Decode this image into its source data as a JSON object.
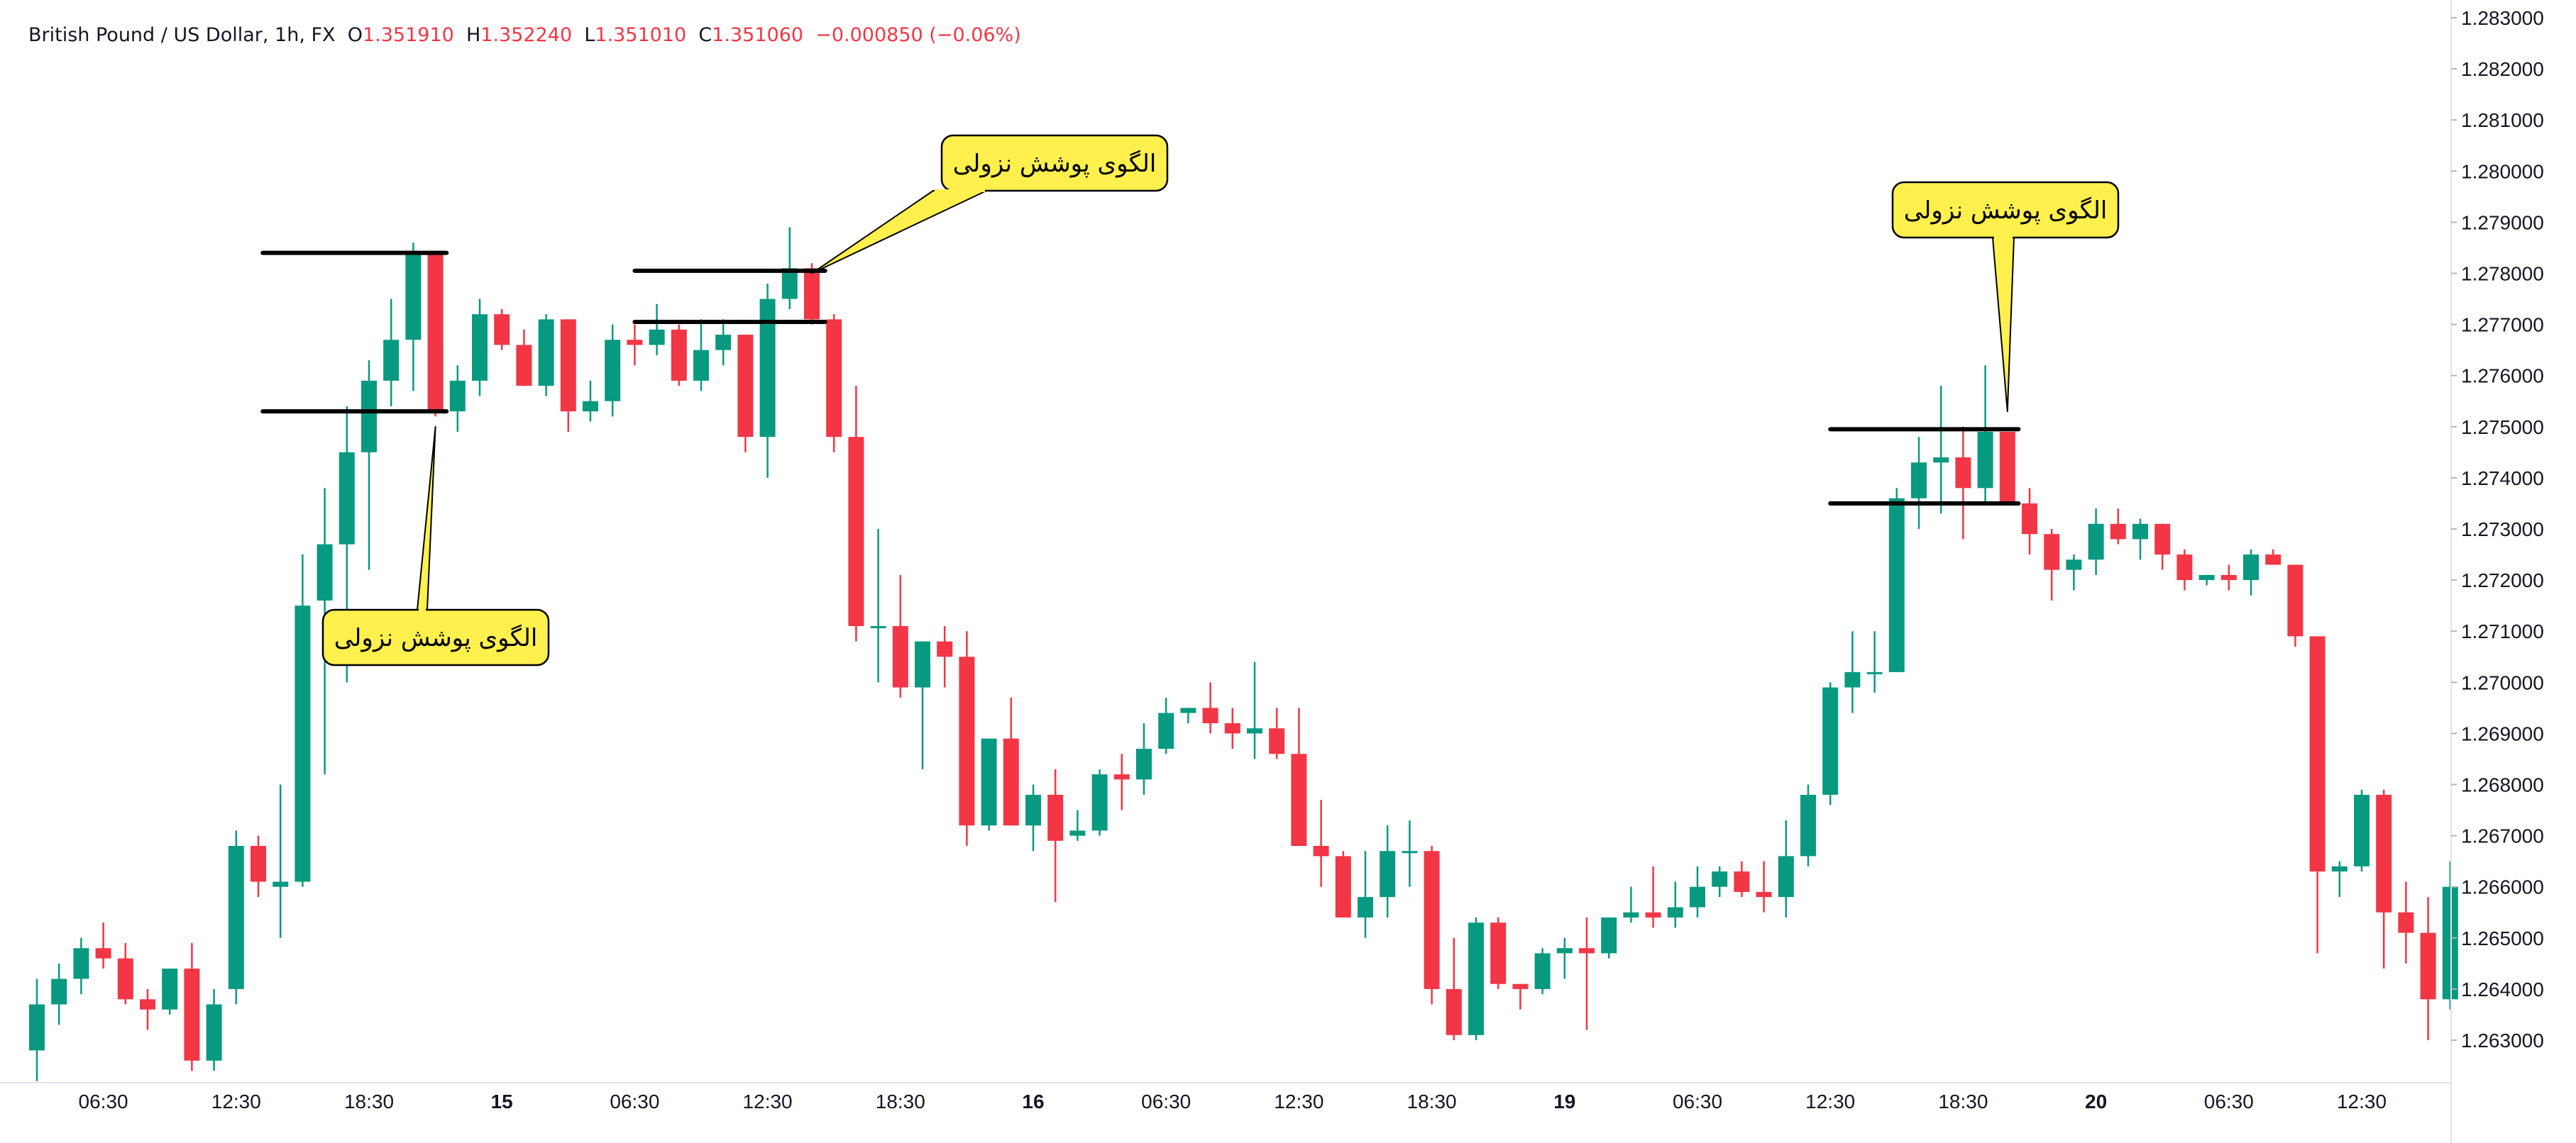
{
  "legend": {
    "symbol": "British Pound / US Dollar, 1h, FX",
    "open_label": "O",
    "open": "1.351910",
    "high_label": "H",
    "high": "1.352240",
    "low_label": "L",
    "low": "1.351010",
    "close_label": "C",
    "close": "1.351060",
    "change": "−0.000850 (−0.06%)"
  },
  "colors": {
    "up": "#089981",
    "down": "#f23645",
    "callout_fill": "#fff04d",
    "line": "#000000"
  },
  "chart_data": {
    "type": "candlestick",
    "ylim": [
      1.2624,
      1.2832
    ],
    "y_ticks": [
      "1.263000",
      "1.264000",
      "1.265000",
      "1.266000",
      "1.267000",
      "1.268000",
      "1.269000",
      "1.270000",
      "1.271000",
      "1.272000",
      "1.273000",
      "1.274000",
      "1.275000",
      "1.276000",
      "1.277000",
      "1.278000",
      "1.279000",
      "1.280000",
      "1.281000",
      "1.282000",
      "1.283000"
    ],
    "x_ticks": [
      {
        "label": "06:30",
        "index": 3,
        "bold": false
      },
      {
        "label": "12:30",
        "index": 9,
        "bold": false
      },
      {
        "label": "18:30",
        "index": 15,
        "bold": false
      },
      {
        "label": "15",
        "index": 21,
        "bold": true
      },
      {
        "label": "06:30",
        "index": 27,
        "bold": false
      },
      {
        "label": "12:30",
        "index": 33,
        "bold": false
      },
      {
        "label": "18:30",
        "index": 39,
        "bold": false
      },
      {
        "label": "16",
        "index": 45,
        "bold": true
      },
      {
        "label": "06:30",
        "index": 51,
        "bold": false
      },
      {
        "label": "12:30",
        "index": 57,
        "bold": false
      },
      {
        "label": "18:30",
        "index": 63,
        "bold": false
      },
      {
        "label": "19",
        "index": 69,
        "bold": true
      },
      {
        "label": "06:30",
        "index": 75,
        "bold": false
      },
      {
        "label": "12:30",
        "index": 81,
        "bold": false
      },
      {
        "label": "18:30",
        "index": 87,
        "bold": false
      },
      {
        "label": "20",
        "index": 93,
        "bold": true
      },
      {
        "label": "06:30",
        "index": 99,
        "bold": false
      },
      {
        "label": "12:30",
        "index": 105,
        "bold": false
      }
    ],
    "candles": [
      [
        1.2628,
        1.2642,
        1.2622,
        1.2637
      ],
      [
        1.2637,
        1.2645,
        1.2633,
        1.2642
      ],
      [
        1.2642,
        1.265,
        1.2639,
        1.2648
      ],
      [
        1.2648,
        1.2653,
        1.2644,
        1.2646
      ],
      [
        1.2646,
        1.2649,
        1.2637,
        1.2638
      ],
      [
        1.2638,
        1.264,
        1.2632,
        1.2636
      ],
      [
        1.2636,
        1.2644,
        1.2635,
        1.2644
      ],
      [
        1.2644,
        1.2649,
        1.2624,
        1.2626
      ],
      [
        1.2626,
        1.264,
        1.2624,
        1.2637
      ],
      [
        1.264,
        1.2671,
        1.2637,
        1.2668
      ],
      [
        1.2668,
        1.267,
        1.2658,
        1.2661
      ],
      [
        1.266,
        1.268,
        1.265,
        1.2661
      ],
      [
        1.2661,
        1.2725,
        1.266,
        1.2715
      ],
      [
        1.2716,
        1.2738,
        1.2682,
        1.2727
      ],
      [
        1.2727,
        1.2754,
        1.27,
        1.2745
      ],
      [
        1.2745,
        1.2763,
        1.2722,
        1.2759
      ],
      [
        1.2759,
        1.2775,
        1.2754,
        1.2767
      ],
      [
        1.2767,
        1.2786,
        1.2757,
        1.2784
      ],
      [
        1.2784,
        1.2784,
        1.2752,
        1.2753
      ],
      [
        1.2753,
        1.2762,
        1.2749,
        1.2759
      ],
      [
        1.2759,
        1.2775,
        1.2756,
        1.2772
      ],
      [
        1.2772,
        1.2773,
        1.2765,
        1.2766
      ],
      [
        1.2766,
        1.2769,
        1.2758,
        1.2758
      ],
      [
        1.2758,
        1.2772,
        1.2756,
        1.2771
      ],
      [
        1.2771,
        1.2771,
        1.2749,
        1.2753
      ],
      [
        1.2753,
        1.2759,
        1.2751,
        1.2755
      ],
      [
        1.2755,
        1.277,
        1.2752,
        1.2767
      ],
      [
        1.2767,
        1.277,
        1.2762,
        1.2766
      ],
      [
        1.2766,
        1.2774,
        1.2764,
        1.2769
      ],
      [
        1.2769,
        1.277,
        1.2758,
        1.2759
      ],
      [
        1.2759,
        1.2771,
        1.2757,
        1.2765
      ],
      [
        1.2765,
        1.2771,
        1.2762,
        1.2768
      ],
      [
        1.2768,
        1.2768,
        1.2745,
        1.2748
      ],
      [
        1.2748,
        1.2778,
        1.274,
        1.2775
      ],
      [
        1.2775,
        1.2789,
        1.2773,
        1.2781
      ],
      [
        1.2781,
        1.2782,
        1.277,
        1.2771
      ],
      [
        1.2771,
        1.2772,
        1.2745,
        1.2748
      ],
      [
        1.2748,
        1.2758,
        1.2708,
        1.2711
      ],
      [
        1.2711,
        1.273,
        1.27,
        1.2711
      ],
      [
        1.2711,
        1.2721,
        1.2697,
        1.2699
      ],
      [
        1.2699,
        1.2708,
        1.2683,
        1.2708
      ],
      [
        1.2708,
        1.2711,
        1.2699,
        1.2705
      ],
      [
        1.2705,
        1.271,
        1.2668,
        1.2672
      ],
      [
        1.2672,
        1.2689,
        1.2671,
        1.2689
      ],
      [
        1.2689,
        1.2697,
        1.2672,
        1.2672
      ],
      [
        1.2672,
        1.268,
        1.2667,
        1.2678
      ],
      [
        1.2678,
        1.2683,
        1.2657,
        1.2669
      ],
      [
        1.267,
        1.2675,
        1.2669,
        1.2671
      ],
      [
        1.2671,
        1.2683,
        1.267,
        1.2682
      ],
      [
        1.2682,
        1.2686,
        1.2675,
        1.2681
      ],
      [
        1.2681,
        1.2692,
        1.2678,
        1.2687
      ],
      [
        1.2687,
        1.2697,
        1.2686,
        1.2694
      ],
      [
        1.2694,
        1.2695,
        1.2692,
        1.2695
      ],
      [
        1.2695,
        1.27,
        1.269,
        1.2692
      ],
      [
        1.2692,
        1.2695,
        1.2687,
        1.269
      ],
      [
        1.269,
        1.2704,
        1.2685,
        1.2691
      ],
      [
        1.2691,
        1.2695,
        1.2685,
        1.2686
      ],
      [
        1.2686,
        1.2695,
        1.2668,
        1.2668
      ],
      [
        1.2668,
        1.2677,
        1.266,
        1.2666
      ],
      [
        1.2666,
        1.2667,
        1.2654,
        1.2654
      ],
      [
        1.2654,
        1.2667,
        1.265,
        1.2658
      ],
      [
        1.2658,
        1.2672,
        1.2654,
        1.2667
      ],
      [
        1.2667,
        1.2673,
        1.266,
        1.2667
      ],
      [
        1.2667,
        1.2668,
        1.2637,
        1.264
      ],
      [
        1.264,
        1.265,
        1.263,
        1.2631
      ],
      [
        1.2631,
        1.2654,
        1.263,
        1.2653
      ],
      [
        1.2653,
        1.2654,
        1.264,
        1.2641
      ],
      [
        1.2641,
        1.2641,
        1.2636,
        1.264
      ],
      [
        1.264,
        1.2648,
        1.2639,
        1.2647
      ],
      [
        1.2647,
        1.265,
        1.2642,
        1.2648
      ],
      [
        1.2648,
        1.2654,
        1.2632,
        1.2647
      ],
      [
        1.2647,
        1.2654,
        1.2646,
        1.2654
      ],
      [
        1.2654,
        1.266,
        1.2653,
        1.2655
      ],
      [
        1.2655,
        1.2664,
        1.2652,
        1.2654
      ],
      [
        1.2654,
        1.2661,
        1.2652,
        1.2656
      ],
      [
        1.2656,
        1.2664,
        1.2654,
        1.266
      ],
      [
        1.266,
        1.2664,
        1.2658,
        1.2663
      ],
      [
        1.2663,
        1.2665,
        1.2658,
        1.2659
      ],
      [
        1.2659,
        1.2665,
        1.2655,
        1.2658
      ],
      [
        1.2658,
        1.2673,
        1.2654,
        1.2666
      ],
      [
        1.2666,
        1.268,
        1.2664,
        1.2678
      ],
      [
        1.2678,
        1.27,
        1.2676,
        1.2699
      ],
      [
        1.2699,
        1.271,
        1.2694,
        1.2702
      ],
      [
        1.2702,
        1.271,
        1.2698,
        1.2702
      ],
      [
        1.2702,
        1.2738,
        1.2702,
        1.2736
      ],
      [
        1.2736,
        1.2748,
        1.273,
        1.2743
      ],
      [
        1.2743,
        1.2758,
        1.2733,
        1.2744
      ],
      [
        1.2744,
        1.275,
        1.2728,
        1.2738
      ],
      [
        1.2738,
        1.2762,
        1.2735,
        1.2749
      ],
      [
        1.2749,
        1.2749,
        1.2735,
        1.2735
      ],
      [
        1.2735,
        1.2738,
        1.2725,
        1.2729
      ],
      [
        1.2729,
        1.273,
        1.2716,
        1.2722
      ],
      [
        1.2722,
        1.2725,
        1.2718,
        1.2724
      ],
      [
        1.2724,
        1.2734,
        1.2721,
        1.2731
      ],
      [
        1.2731,
        1.2734,
        1.2727,
        1.2728
      ],
      [
        1.2728,
        1.2732,
        1.2724,
        1.2731
      ],
      [
        1.2731,
        1.2731,
        1.2722,
        1.2725
      ],
      [
        1.2725,
        1.2726,
        1.2718,
        1.272
      ],
      [
        1.272,
        1.2721,
        1.2719,
        1.2721
      ],
      [
        1.2721,
        1.2723,
        1.2718,
        1.272
      ],
      [
        1.272,
        1.2726,
        1.2717,
        1.2725
      ],
      [
        1.2725,
        1.2726,
        1.2723,
        1.2723
      ],
      [
        1.2723,
        1.2723,
        1.2707,
        1.2709
      ],
      [
        1.2709,
        1.2709,
        1.2647,
        1.2663
      ],
      [
        1.2663,
        1.2665,
        1.2658,
        1.2664
      ],
      [
        1.2664,
        1.2679,
        1.2663,
        1.2678
      ],
      [
        1.2678,
        1.2679,
        1.2644,
        1.2655
      ],
      [
        1.2655,
        1.2661,
        1.2645,
        1.2651
      ],
      [
        1.2651,
        1.2658,
        1.263,
        1.2638
      ],
      [
        1.2638,
        1.2665,
        1.2636,
        1.266
      ]
    ],
    "levels": [
      {
        "from": 10.2,
        "to": 18.5,
        "price": 1.2784
      },
      {
        "from": 10.2,
        "to": 18.5,
        "price": 1.2753
      },
      {
        "from": 27.0,
        "to": 35.6,
        "price": 1.27805
      },
      {
        "from": 27.0,
        "to": 35.6,
        "price": 1.27705
      },
      {
        "from": 81.0,
        "to": 89.5,
        "price": 1.27495
      },
      {
        "from": 81.0,
        "to": 89.5,
        "price": 1.2735
      }
    ],
    "annotations": [
      {
        "text": "الگوی پوشش نزولی",
        "anchor_index": 18,
        "anchor_price": 1.275
      },
      {
        "text": "الگوی پوشش نزولی",
        "anchor_index": 35,
        "anchor_price": 1.278
      },
      {
        "text": "الگوی پوشش نزولی",
        "anchor_index": 89,
        "anchor_price": 1.2753
      }
    ]
  }
}
